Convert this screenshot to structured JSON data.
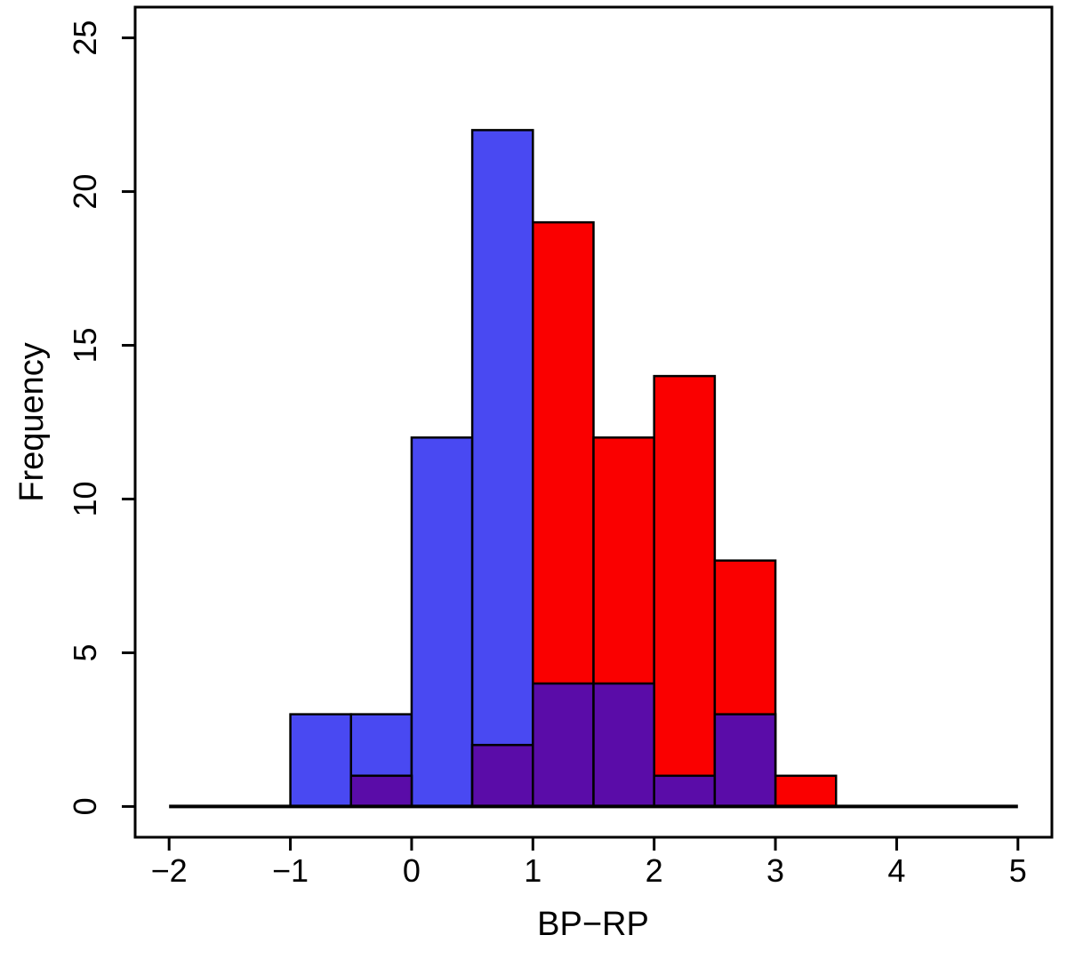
{
  "chart_data": {
    "type": "histogram",
    "title": "",
    "xlabel": "BP−RP",
    "ylabel": "Frequency",
    "xlim": [
      -2,
      5
    ],
    "ylim": [
      0,
      25
    ],
    "x_ticks": [
      -2,
      -1,
      0,
      1,
      2,
      3,
      4,
      5
    ],
    "y_ticks": [
      0,
      5,
      10,
      15,
      20,
      25
    ],
    "bins": {
      "start": -1,
      "width": 0.5
    },
    "series": [
      {
        "name": "blue-histogram",
        "color": "#4949F2",
        "counts": [
          3,
          3,
          12,
          22,
          4,
          4,
          1,
          3,
          0
        ]
      },
      {
        "name": "red-histogram",
        "color": "#FA0000",
        "counts": [
          0,
          1,
          0,
          2,
          19,
          12,
          14,
          8,
          1
        ]
      }
    ],
    "overlap_color": "#5A0CA8",
    "bar_border_color": "#000000",
    "axis_color": "#000000",
    "background": "#FFFFFF",
    "grid": "off",
    "legend": "none"
  }
}
